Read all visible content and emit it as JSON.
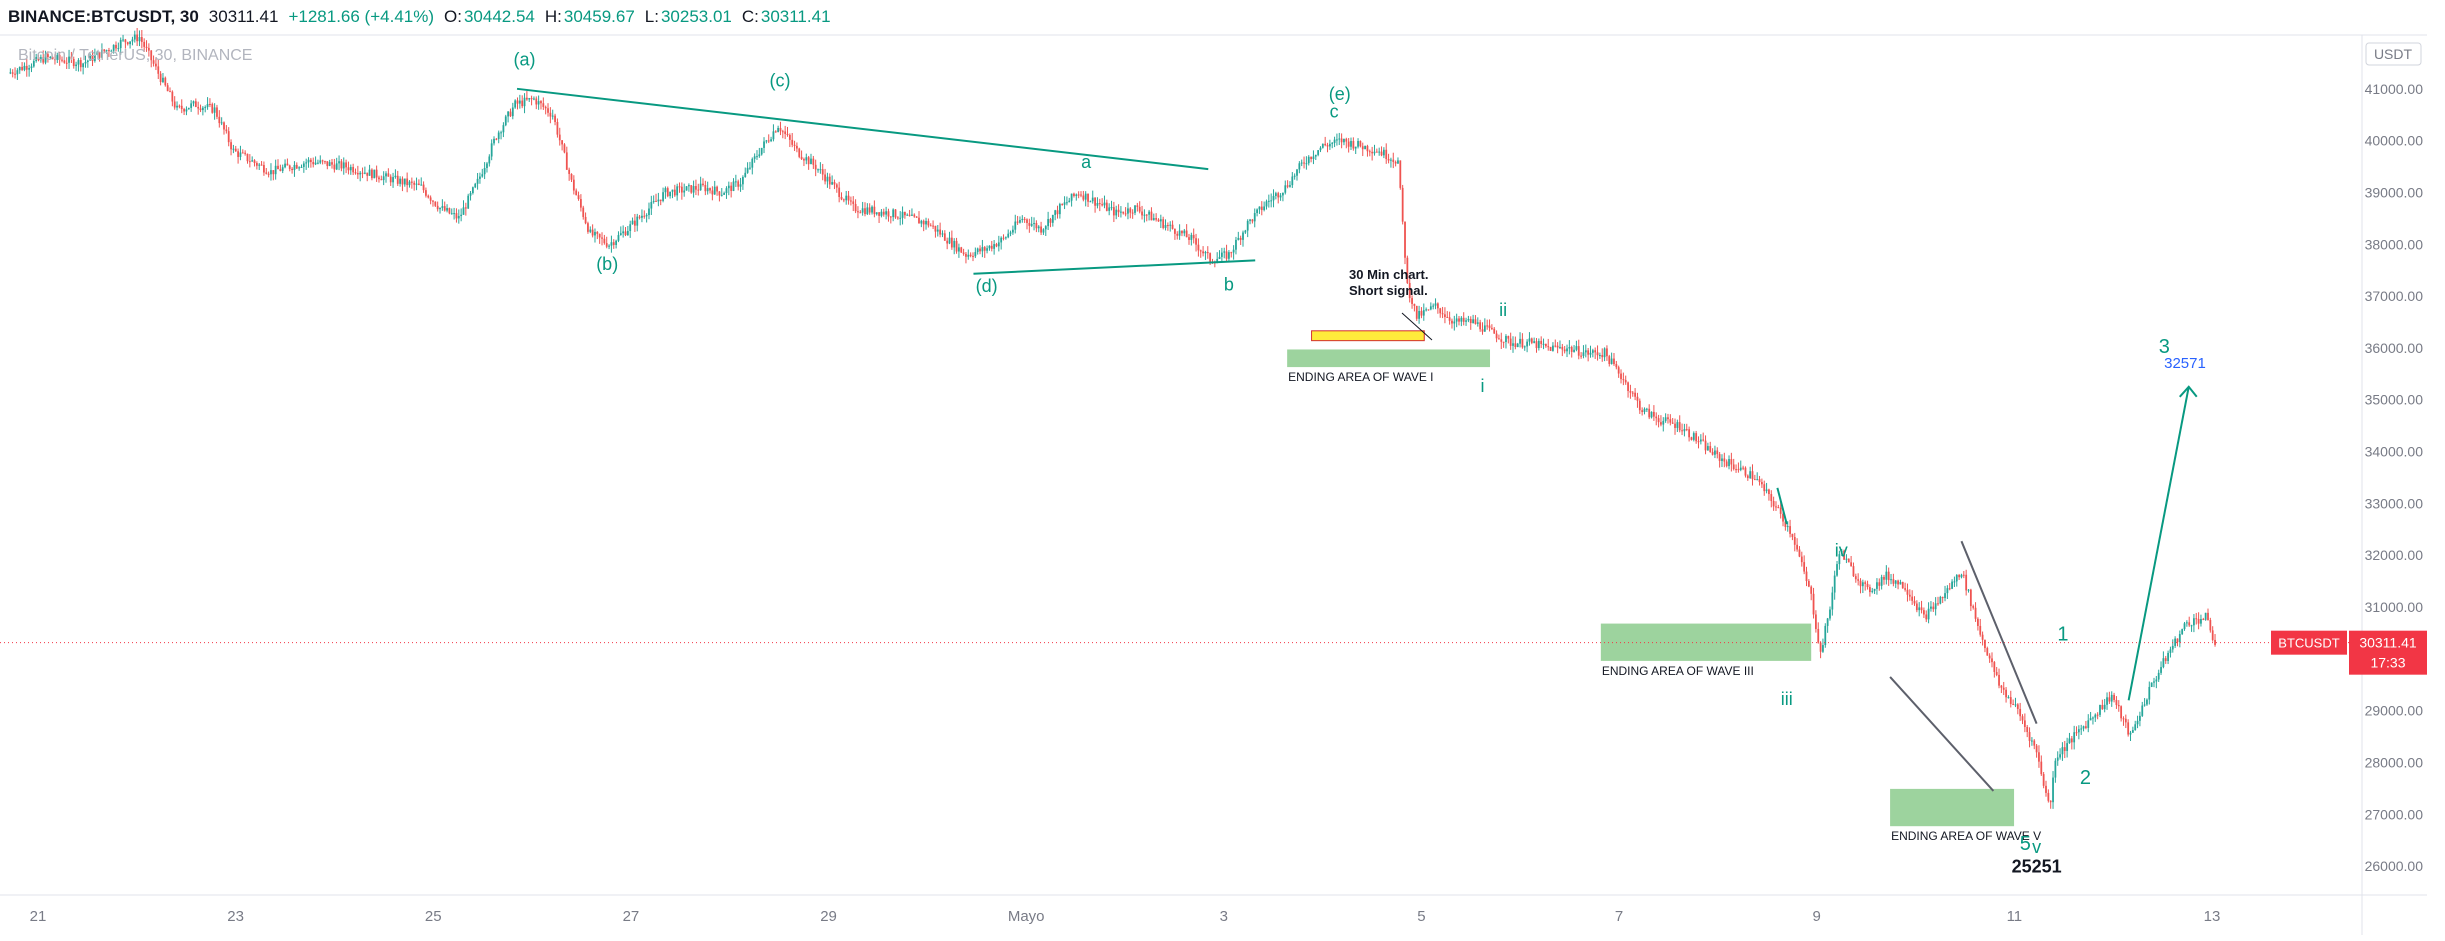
{
  "header": {
    "symbol": "BINANCE:BTCUSDT, 30",
    "last": "30311.41",
    "change": "+1281.66 (+4.41%)",
    "o_label": "O:",
    "o": "30442.54",
    "h_label": "H:",
    "h": "30459.67",
    "l_label": "L:",
    "l": "30253.01",
    "c_label": "C:",
    "c": "30311.41"
  },
  "subtitle": "Bitcoin / TetherUS, 30, BINANCE",
  "currency_badge": "USDT",
  "price_tag": {
    "label": "BTCUSDT",
    "price": "30311.41",
    "countdown": "17:33"
  },
  "colors": {
    "up": "#26a69a",
    "down": "#ef5350",
    "wave": "#089981",
    "price_line": "#f23645",
    "zone": "#85c886",
    "signal_box": "#ffeb3b",
    "target": "#2962ff"
  },
  "chart_data": {
    "type": "candlestick",
    "interval": "30 min",
    "ylim": [
      25500,
      42000
    ],
    "y_ticks": [
      26000,
      27000,
      28000,
      29000,
      30000,
      31000,
      32000,
      33000,
      34000,
      35000,
      36000,
      37000,
      38000,
      39000,
      40000,
      41000
    ],
    "y_tick_labels": [
      "26000.00",
      "27000.00",
      "28000.00",
      "29000.00",
      "30000.00",
      "31000.00",
      "32000.00",
      "33000.00",
      "34000.00",
      "35000.00",
      "36000.00",
      "37000.00",
      "38000.00",
      "39000.00",
      "40000.00",
      "41000.00"
    ],
    "x_ticks": [
      "21",
      "23",
      "25",
      "27",
      "29",
      "Mayo",
      "3",
      "5",
      "7",
      "9",
      "11",
      "13"
    ],
    "price_path": [
      [
        0,
        41300
      ],
      [
        2,
        41600
      ],
      [
        4,
        41500
      ],
      [
        6,
        41900
      ],
      [
        7,
        42000
      ],
      [
        8,
        41300
      ],
      [
        9,
        40600
      ],
      [
        10,
        40700
      ],
      [
        11,
        40600
      ],
      [
        12,
        39800
      ],
      [
        13,
        39600
      ],
      [
        14,
        39400
      ],
      [
        16,
        39600
      ],
      [
        18,
        39500
      ],
      [
        20,
        39300
      ],
      [
        22,
        39100
      ],
      [
        23,
        38700
      ],
      [
        24,
        38500
      ],
      [
        25,
        39200
      ],
      [
        26,
        40100
      ],
      [
        27,
        40700
      ],
      [
        28,
        40800
      ],
      [
        29,
        40500
      ],
      [
        30,
        39200
      ],
      [
        31,
        38200
      ],
      [
        32,
        38000
      ],
      [
        33,
        38300
      ],
      [
        35,
        39000
      ],
      [
        37,
        39100
      ],
      [
        38,
        39000
      ],
      [
        39,
        39200
      ],
      [
        40,
        39800
      ],
      [
        41,
        40300
      ],
      [
        42,
        39800
      ],
      [
        43,
        39500
      ],
      [
        44,
        39100
      ],
      [
        45,
        38700
      ],
      [
        47,
        38600
      ],
      [
        49,
        38400
      ],
      [
        50,
        38100
      ],
      [
        51,
        37800
      ],
      [
        52,
        37900
      ],
      [
        53,
        38100
      ],
      [
        54,
        38500
      ],
      [
        55,
        38300
      ],
      [
        56,
        38700
      ],
      [
        57,
        39000
      ],
      [
        58,
        38800
      ],
      [
        59,
        38600
      ],
      [
        60,
        38700
      ],
      [
        61,
        38500
      ],
      [
        62,
        38300
      ],
      [
        63,
        38100
      ],
      [
        64,
        37700
      ],
      [
        65,
        37800
      ],
      [
        66,
        38400
      ],
      [
        67,
        38800
      ],
      [
        68,
        39100
      ],
      [
        69,
        39600
      ],
      [
        70,
        39900
      ],
      [
        71,
        40000
      ],
      [
        72,
        39900
      ],
      [
        73,
        39800
      ],
      [
        74,
        39600
      ],
      [
        74.5,
        37200
      ],
      [
        75,
        36600
      ],
      [
        76,
        36800
      ],
      [
        77,
        36500
      ],
      [
        78,
        36500
      ],
      [
        79,
        36300
      ],
      [
        80,
        36100
      ],
      [
        81,
        36100
      ],
      [
        82,
        36000
      ],
      [
        83,
        36000
      ],
      [
        84,
        35900
      ],
      [
        85,
        35900
      ],
      [
        86,
        35400
      ],
      [
        87,
        34800
      ],
      [
        88,
        34600
      ],
      [
        89,
        34500
      ],
      [
        90,
        34200
      ],
      [
        91,
        33900
      ],
      [
        92,
        33700
      ],
      [
        93,
        33500
      ],
      [
        94,
        33000
      ],
      [
        95,
        32400
      ],
      [
        96,
        31200
      ],
      [
        96.5,
        30100
      ],
      [
        97,
        31000
      ],
      [
        97.5,
        32100
      ],
      [
        98,
        31800
      ],
      [
        99,
        31300
      ],
      [
        100,
        31600
      ],
      [
        101,
        31400
      ],
      [
        102,
        30800
      ],
      [
        103,
        31200
      ],
      [
        104,
        31700
      ],
      [
        105,
        30500
      ],
      [
        106,
        29500
      ],
      [
        107,
        29000
      ],
      [
        108,
        28200
      ],
      [
        108.7,
        27100
      ],
      [
        109,
        28100
      ],
      [
        110,
        28500
      ],
      [
        111,
        28900
      ],
      [
        112,
        29300
      ],
      [
        113,
        28500
      ],
      [
        114,
        29400
      ],
      [
        115,
        30100
      ],
      [
        116,
        30700
      ],
      [
        117,
        30800
      ],
      [
        117.5,
        30300
      ]
    ],
    "trendlines": [
      {
        "from": [
          27.1,
          41000
        ],
        "to": [
          63.9,
          39450
        ]
      },
      {
        "from": [
          51.4,
          37430
        ],
        "to": [
          66.4,
          37690
        ]
      },
      {
        "from": [
          94.2,
          33300
        ],
        "to": [
          94.7,
          32600
        ]
      },
      {
        "from": [
          100.2,
          29650
        ],
        "to": [
          105.7,
          27450
        ]
      },
      {
        "from": [
          104,
          32270
        ],
        "to": [
          108,
          28750
        ]
      },
      {
        "from": [
          112.9,
          29200
        ],
        "to": [
          116.1,
          35250
        ]
      }
    ],
    "zones": [
      {
        "from": [
          68.1,
          35970
        ],
        "to": [
          78.9,
          35630
        ],
        "label": "ENDING AREA OF WAVE I"
      },
      {
        "from": [
          84.8,
          30680
        ],
        "to": [
          96,
          29960
        ],
        "label": "ENDING AREA OF WAVE III"
      },
      {
        "from": [
          100.2,
          27490
        ],
        "to": [
          106.8,
          26770
        ],
        "label": "ENDING AREA OF WAVE V"
      }
    ],
    "signal_box": {
      "from": [
        69.4,
        36330
      ],
      "to": [
        75.4,
        36140
      ]
    },
    "annotation": {
      "lines": [
        "30 Min chart.",
        "Short signal."
      ]
    },
    "wave_labels": [
      {
        "text": "(a)",
        "at": [
          27.5,
          41450
        ]
      },
      {
        "text": "(b)",
        "at": [
          31.9,
          37500
        ]
      },
      {
        "text": "(c)",
        "at": [
          41.1,
          41040
        ]
      },
      {
        "text": "(d)",
        "at": [
          52.1,
          37080
        ]
      },
      {
        "text": "(e)",
        "at": [
          70.9,
          40780
        ]
      },
      {
        "text": "a",
        "at": [
          57.4,
          39470
        ]
      },
      {
        "text": "b",
        "at": [
          65,
          37110
        ]
      },
      {
        "text": "c",
        "at": [
          70.6,
          40450
        ]
      },
      {
        "text": "i",
        "at": [
          78.5,
          35150
        ]
      },
      {
        "text": "ii",
        "at": [
          79.6,
          36620
        ]
      },
      {
        "text": "iii",
        "at": [
          94.7,
          29110
        ]
      },
      {
        "text": "iv",
        "at": [
          97.6,
          31970
        ]
      },
      {
        "text": "1",
        "at": [
          109.4,
          30350
        ]
      },
      {
        "text": "2",
        "at": [
          110.6,
          27580
        ]
      },
      {
        "text": "3",
        "at": [
          114.8,
          35900
        ]
      },
      {
        "text": "5",
        "at": [
          107.4,
          26310
        ]
      },
      {
        "text": "v",
        "at": [
          108,
          26250
        ]
      }
    ],
    "value_labels": [
      {
        "text": "32571",
        "at": [
          115.9,
          35610
        ]
      },
      {
        "text": "25251",
        "at": [
          108,
          25880
        ]
      }
    ],
    "current_price": 30311.41
  }
}
